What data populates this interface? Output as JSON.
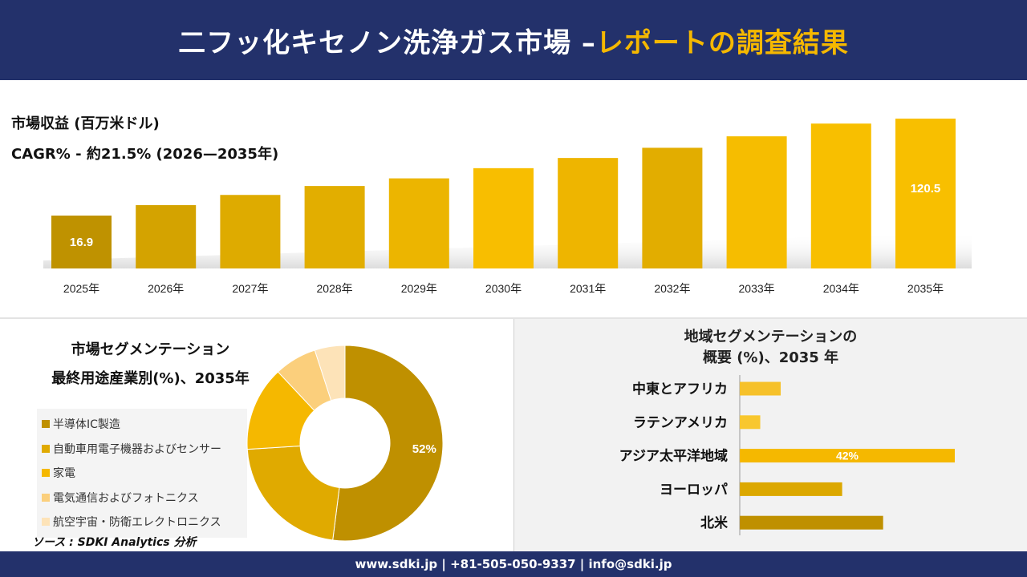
{
  "header": {
    "title_main": "二フッ化キセノン洗浄ガス市場 –",
    "title_accent": "レポートの調査結果"
  },
  "top": {
    "metric_label": "市場収益 (百万米ドル)",
    "cagr_label": "CAGR% - 約21.5% (2026—2035年)"
  },
  "segmentation": {
    "title_line1": "市場セグメンテーション",
    "title_line2": "最終用途産業別(%)、2035年",
    "source": "ソース : SDKI Analytics 分析"
  },
  "regions": {
    "title_line1": "地域セグメンテーションの",
    "title_line2": "概要 (%)、2035 年"
  },
  "footer": {
    "contact": "www.sdki.jp | +81-505-050-9337 | info@sdki.jp"
  },
  "colors": {
    "navy": "#23316b",
    "accent": "#f5b800"
  },
  "chart_data": [
    {
      "type": "bar",
      "categories": [
        "2025年",
        "2026年",
        "2027年",
        "2028年",
        "2029年",
        "2030年",
        "2031年",
        "2032年",
        "2033年",
        "2034年",
        "2035年"
      ],
      "values": [
        16.9,
        21,
        25,
        28.5,
        31.5,
        35.5,
        39.5,
        43.5,
        48,
        53,
        120.5
      ],
      "data_labels": [
        "16.9",
        "",
        "",
        "",
        "",
        "",
        "",
        "",
        "",
        "",
        "120.5"
      ],
      "colors": [
        "#bf9200",
        "#d4a300",
        "#deab00",
        "#e2ae00",
        "#ecb500",
        "#f8be00",
        "#eeb500",
        "#e2ad00",
        "#f6bd00",
        "#f8bf00",
        "#f8bf00"
      ]
    },
    {
      "type": "pie",
      "categories": [
        "半導体IC製造",
        "自動車用電子機器およびセンサー",
        "家電",
        "電気通信およびフォトニクス",
        "航空宇宙・防衛エレクトロニクス"
      ],
      "values": [
        52,
        22,
        14,
        7,
        5
      ],
      "data_labels": [
        "52%",
        "",
        "",
        "",
        ""
      ],
      "colors": [
        "#bf9000",
        "#e0aa00",
        "#f5b800",
        "#fbcf7c",
        "#fde3b8"
      ]
    },
    {
      "type": "bar",
      "orientation": "horizontal",
      "categories": [
        "中東とアフリカ",
        "ラテンアメリカ",
        "アジア太平洋地域",
        "ヨーロッパ",
        "北米"
      ],
      "values": [
        8,
        4,
        42,
        20,
        28
      ],
      "data_labels": [
        "",
        "",
        "42%",
        "",
        ""
      ],
      "colors": [
        "#f6c12a",
        "#f8c72e",
        "#f5b800",
        "#dca800",
        "#bf9000"
      ]
    }
  ]
}
